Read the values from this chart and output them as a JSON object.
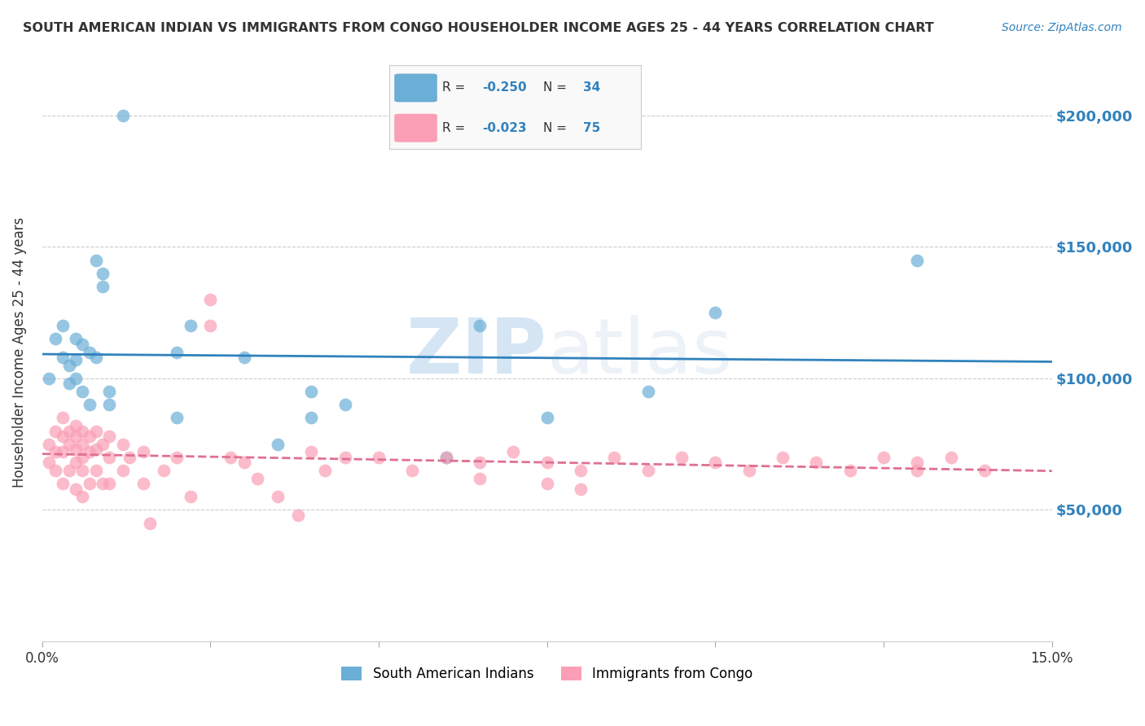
{
  "title": "SOUTH AMERICAN INDIAN VS IMMIGRANTS FROM CONGO HOUSEHOLDER INCOME AGES 25 - 44 YEARS CORRELATION CHART",
  "source": "Source: ZipAtlas.com",
  "ylabel": "Householder Income Ages 25 - 44 years",
  "xlim": [
    0.0,
    0.15
  ],
  "ylim": [
    0,
    220000
  ],
  "yticks": [
    50000,
    100000,
    150000,
    200000
  ],
  "ytick_labels": [
    "$50,000",
    "$100,000",
    "$150,000",
    "$200,000"
  ],
  "blue_R": "-0.250",
  "blue_N": "34",
  "pink_R": "-0.023",
  "pink_N": "75",
  "legend_label_blue": "South American Indians",
  "legend_label_pink": "Immigrants from Congo",
  "blue_color": "#6baed6",
  "pink_color": "#fa9fb5",
  "blue_line_color": "#3182bd",
  "pink_line_color": "#e07090",
  "background_color": "#ffffff",
  "watermark_zip": "ZIP",
  "watermark_atlas": "atlas",
  "blue_scatter_x": [
    0.001,
    0.002,
    0.003,
    0.003,
    0.004,
    0.004,
    0.005,
    0.005,
    0.005,
    0.006,
    0.006,
    0.007,
    0.007,
    0.008,
    0.008,
    0.009,
    0.009,
    0.01,
    0.01,
    0.012,
    0.02,
    0.02,
    0.022,
    0.03,
    0.035,
    0.04,
    0.04,
    0.045,
    0.06,
    0.065,
    0.075,
    0.09,
    0.1,
    0.13
  ],
  "blue_scatter_y": [
    100000,
    115000,
    108000,
    120000,
    105000,
    98000,
    115000,
    107000,
    100000,
    113000,
    95000,
    110000,
    90000,
    108000,
    145000,
    140000,
    135000,
    90000,
    95000,
    200000,
    110000,
    85000,
    120000,
    108000,
    75000,
    95000,
    85000,
    90000,
    70000,
    120000,
    85000,
    95000,
    125000,
    145000
  ],
  "pink_scatter_x": [
    0.001,
    0.001,
    0.002,
    0.002,
    0.002,
    0.003,
    0.003,
    0.003,
    0.003,
    0.004,
    0.004,
    0.004,
    0.005,
    0.005,
    0.005,
    0.005,
    0.005,
    0.006,
    0.006,
    0.006,
    0.006,
    0.006,
    0.007,
    0.007,
    0.007,
    0.008,
    0.008,
    0.008,
    0.009,
    0.009,
    0.01,
    0.01,
    0.01,
    0.012,
    0.012,
    0.013,
    0.015,
    0.015,
    0.016,
    0.018,
    0.02,
    0.022,
    0.025,
    0.025,
    0.028,
    0.03,
    0.032,
    0.035,
    0.038,
    0.04,
    0.042,
    0.045,
    0.05,
    0.055,
    0.06,
    0.065,
    0.065,
    0.07,
    0.075,
    0.075,
    0.08,
    0.08,
    0.085,
    0.09,
    0.095,
    0.1,
    0.105,
    0.11,
    0.115,
    0.12,
    0.125,
    0.13,
    0.13,
    0.135,
    0.14
  ],
  "pink_scatter_y": [
    75000,
    68000,
    80000,
    72000,
    65000,
    85000,
    78000,
    72000,
    60000,
    80000,
    75000,
    65000,
    82000,
    78000,
    73000,
    68000,
    58000,
    80000,
    75000,
    70000,
    65000,
    55000,
    78000,
    72000,
    60000,
    80000,
    73000,
    65000,
    75000,
    60000,
    78000,
    70000,
    60000,
    75000,
    65000,
    70000,
    72000,
    60000,
    45000,
    65000,
    70000,
    55000,
    130000,
    120000,
    70000,
    68000,
    62000,
    55000,
    48000,
    72000,
    65000,
    70000,
    70000,
    65000,
    70000,
    68000,
    62000,
    72000,
    68000,
    60000,
    65000,
    58000,
    70000,
    65000,
    70000,
    68000,
    65000,
    70000,
    68000,
    65000,
    70000,
    68000,
    65000,
    70000,
    65000
  ]
}
